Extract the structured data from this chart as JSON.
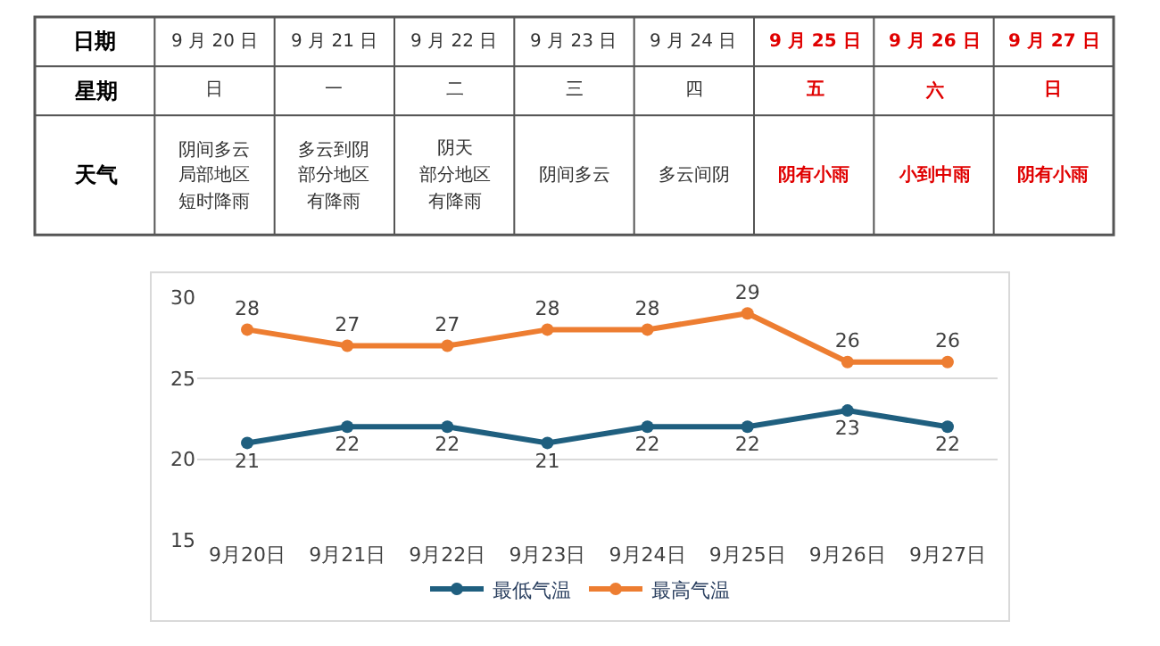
{
  "chart_data": [
    {
      "type": "other",
      "cell_labels": [
        [
          "日期",
          "9 月 20 日",
          "9 月 21 日",
          "9 月 22 日",
          "9 月 23 日",
          "9 月 24 日",
          "9 月 25 日",
          "9 月 26 日",
          "9 月 27 日"
        ],
        [
          "星期",
          "日",
          "一",
          "二",
          "三",
          "四",
          "五",
          "六",
          "日"
        ],
        [
          "天气",
          [
            "阴间多云",
            "局部地区",
            "短时降雨"
          ],
          [
            "多云到阴",
            "部分地区",
            "有降雨"
          ],
          [
            "阴天",
            "部分地区",
            "有降雨"
          ],
          "阴间多云",
          "多云间阴",
          "阴有小雨",
          "小到中雨",
          "阴有小雨"
        ]
      ],
      "colors": [
        "#000000",
        "#333333",
        "#333333",
        "#333333",
        "#333333",
        "#333333",
        "#e00000",
        "#e00000",
        "#e00000"
      ]
    },
    {
      "type": "line",
      "categories": [
        "9月20日",
        "9月21日",
        "9月22日",
        "9月23日",
        "9月24日",
        "9月25日",
        "9月26日",
        "9月27日"
      ],
      "series": [
        {
          "name": "最低气温",
          "color": "#1f5f7f",
          "values": [
            21,
            22,
            22,
            21,
            22,
            22,
            23,
            22
          ]
        },
        {
          "name": "最高气温",
          "color": "#ed7d31",
          "values": [
            28,
            27,
            27,
            28,
            28,
            29,
            26,
            26
          ]
        }
      ],
      "ylim": [
        15,
        30
      ],
      "yticks": [
        15,
        20,
        25,
        30
      ],
      "grid": "y",
      "legend": "bottom",
      "marker": "circle",
      "line_style": "solid",
      "data_labels": true
    }
  ]
}
